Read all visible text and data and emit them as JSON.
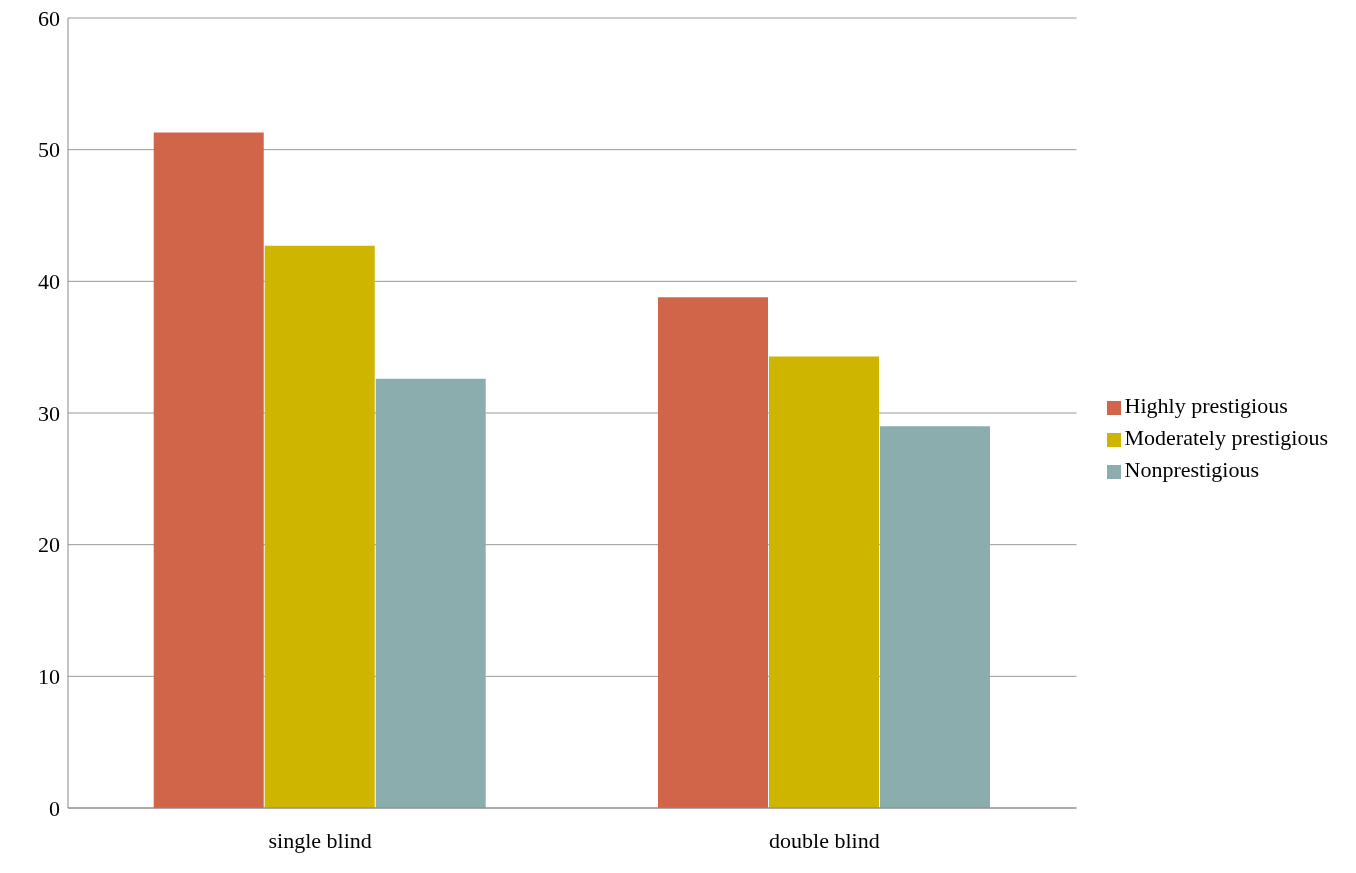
{
  "chart_data": {
    "type": "bar",
    "categories": [
      "single blind",
      "double blind"
    ],
    "series": [
      {
        "name": "Highly prestigious",
        "color": "#d06549",
        "values": [
          51.3,
          38.8
        ]
      },
      {
        "name": "Moderately prestigious",
        "color": "#cdb500",
        "values": [
          42.7,
          34.3
        ]
      },
      {
        "name": "Nonprestigious",
        "color": "#8cadad",
        "values": [
          32.6,
          29.0
        ]
      }
    ],
    "ylim": [
      0,
      60
    ],
    "yticks": [
      0,
      10,
      20,
      30,
      40,
      50,
      60
    ],
    "grid": "y",
    "legend": "right"
  }
}
